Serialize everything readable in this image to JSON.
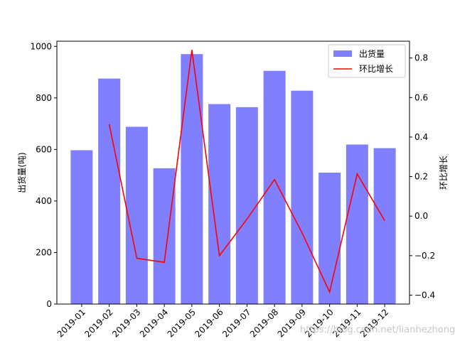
{
  "chart_data": {
    "type": "bar",
    "categories": [
      "2019-01",
      "2019-02",
      "2019-03",
      "2019-04",
      "2019-05",
      "2019-06",
      "2019-07",
      "2019-08",
      "2019-09",
      "2019-10",
      "2019-11",
      "2019-12"
    ],
    "series": [
      {
        "name": "出货量",
        "type": "bar",
        "axis": "left",
        "color": "#8080ff",
        "values": [
          597,
          875,
          688,
          527,
          970,
          776,
          764,
          905,
          828,
          510,
          619,
          605
        ]
      },
      {
        "name": "环比增长",
        "type": "line",
        "axis": "right",
        "color": "#ff0000",
        "values": [
          null,
          0.465,
          -0.213,
          -0.234,
          0.841,
          -0.2,
          -0.015,
          0.185,
          -0.085,
          -0.384,
          0.214,
          -0.023
        ]
      }
    ],
    "ylabel": "出货量(吨)",
    "y2label": "环比增长",
    "ylim": [
      0,
      1020
    ],
    "y2lim": [
      -0.445,
      0.885
    ],
    "yticks": [
      0,
      200,
      400,
      600,
      800,
      1000
    ],
    "y2ticks": [
      -0.4,
      -0.2,
      0.0,
      0.2,
      0.4,
      0.6,
      0.8
    ],
    "legend": "top-right",
    "grid": false,
    "watermark": "https://blog.csdn.net/lianhezhong"
  }
}
